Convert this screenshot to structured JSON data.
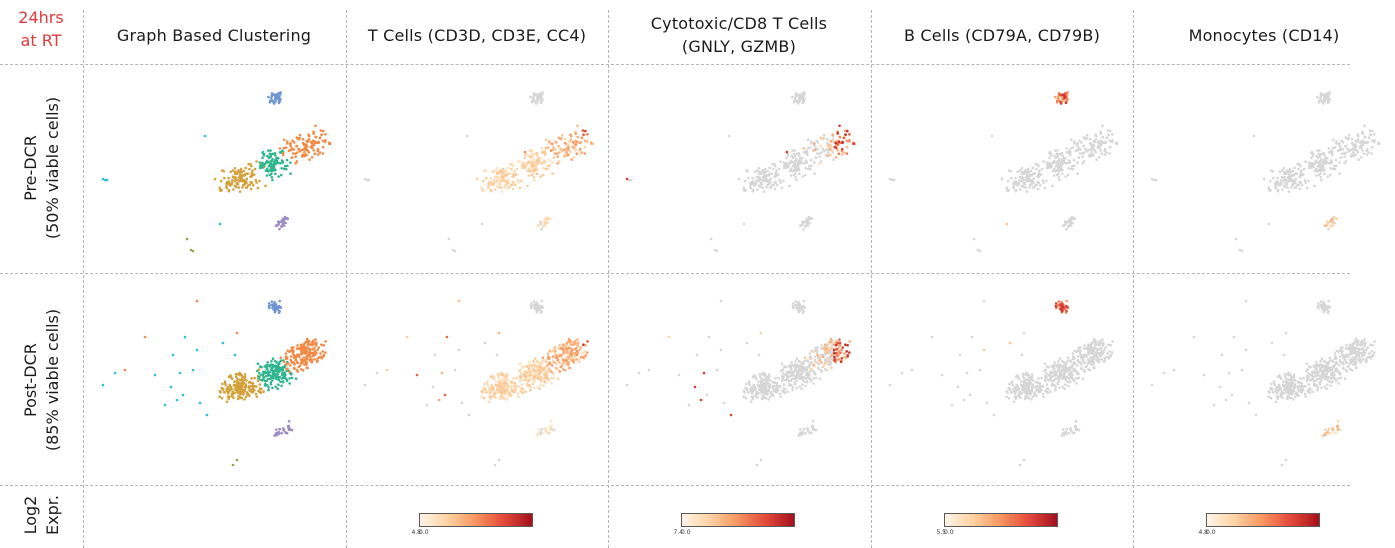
{
  "corner_label": [
    "24hrs",
    "at RT"
  ],
  "columns": [
    {
      "title": [
        "Graph Based Clustering"
      ],
      "type": "clusters"
    },
    {
      "title": [
        "T Cells (CD3D, CD3E, CC4)"
      ],
      "type": "tcell",
      "legend": {
        "min": "0.0",
        "max": "4.8"
      }
    },
    {
      "title": [
        "Cytotoxic/CD8 T Cells",
        "(GNLY, GZMB)"
      ],
      "type": "cyto",
      "legend": {
        "min": "0.0",
        "max": "7.4"
      }
    },
    {
      "title": [
        "B Cells (CD79A, CD79B)"
      ],
      "type": "bcell",
      "legend": {
        "min": "0.0",
        "max": "5.5"
      }
    },
    {
      "title": [
        "Monocytes (CD14)"
      ],
      "type": "mono",
      "legend": {
        "min": "0.0",
        "max": "4.8"
      }
    }
  ],
  "rows": [
    {
      "label": [
        "Pre-DCR",
        "(50% viable cells)"
      ],
      "condition": "pre"
    },
    {
      "label": [
        "Post-DCR",
        "(85% viable cells)"
      ],
      "condition": "post"
    },
    {
      "label": [
        "Log2",
        "Expr."
      ],
      "condition": "legend"
    }
  ],
  "colors": {
    "cluster_gold": "#d4a03a",
    "cluster_teal": "#2fb58e",
    "cluster_orange": "#f28a45",
    "cluster_blue": "#7096d1",
    "cluster_purple": "#9d8bc6",
    "cluster_cyan": "#27c0d6",
    "cluster_olive": "#9aa04a",
    "unexpressed": "#d6d6d6",
    "colormap": [
      "#fff5e8",
      "#fdd2a2",
      "#f7955f",
      "#e3493a",
      "#a3101c"
    ],
    "accent_red": "#e0393b"
  }
}
